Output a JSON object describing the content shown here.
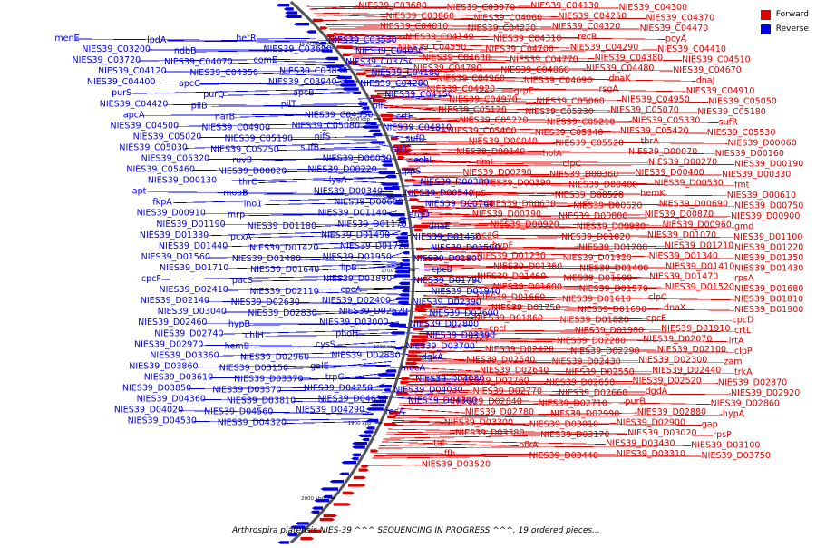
{
  "legend": {
    "items": [
      {
        "label": "Forward",
        "color": "#e00000"
      },
      {
        "label": "Reverse",
        "color": "#0000e0"
      }
    ]
  },
  "colors": {
    "forward": "#e00000",
    "reverse": "#0000e0",
    "backbone": "#555555"
  },
  "ticks": [
    "1500 kbp",
    "1500 kbp",
    "1600 kbp",
    "1700 kbp",
    "1800 kbp",
    "1900 kbp",
    "2000 kbp"
  ],
  "caption": "Arthrospira platensis NIES-39 ^^^ SEQUENCING IN PROGRESS ^^^, 19 ordered pieces...",
  "reverse_labels": [
    "menE",
    "lpdA",
    "hetR",
    "NIES39_C03530",
    "NIES39_C03200",
    "ndbB",
    "NIES39_C03690",
    "NIES39_C04050",
    "NIES39_C03720",
    "NIES39_C04070",
    "comE",
    "NIES39_C03750",
    "NIES39_C04120",
    "NIES39_C04350",
    "NIES39_C03830",
    "NIES39_C04180",
    "NIES39_C04400",
    "apcC",
    "NIES39_C03940",
    "NIES39_C04280",
    "purS",
    "purQ",
    "apcB",
    "NIES39_C04150",
    "NIES39_C04420",
    "pilB",
    "pilT",
    "pilC",
    "apcA",
    "narB",
    "NIES39_C04330",
    "crtH",
    "NIES39_C04500",
    "NIES39_C04900",
    "NIES39_C05080",
    "NIES39_C04810",
    "NIES39_C05020",
    "NIES39_C05190",
    "nifS",
    "sufD",
    "NIES39_C05030",
    "NIES39_C05250",
    "sufB",
    "sufC",
    "NIES39_C05320",
    "ruvB",
    "NIES39_D00030",
    "cobL",
    "NIES39_C05460",
    "NIES39_D00020",
    "NIES39_D00220",
    "uppS",
    "NIES39_D00130",
    "thrC",
    "lysA",
    "NIES39_D00380",
    "apt",
    "moaB",
    "NIES39_D00340",
    "NIES39_D00540",
    "fkpA",
    "ino1",
    "NIES39_D00660",
    "NIES39_D00760",
    "NIES39_D00910",
    "mrp",
    "NIES39_D01140",
    "argD",
    "NIES39_D01190",
    "NIES39_D01180",
    "NIES39_D01170",
    "dnaE",
    "NIES39_D01330",
    "pcxA",
    "NIES39_D01490",
    "NIES39_D01450",
    "NIES39_D01440",
    "NIES39_D01420",
    "NIES39_D01720",
    "NIES39_D01590",
    "NIES39_D01560",
    "NIES39_D01480",
    "NIES39_D01950",
    "NIES39_D01800",
    "NIES39_D01710",
    "NIES39_D01640",
    "lipB",
    "cpcB",
    "cpcF",
    "pacS",
    "NIES39_D01890",
    "NIES39_D01790",
    "NIES39_D02410",
    "NIES39_D02110",
    "cpcA",
    "NIES39_D01940",
    "NIES39_D02140",
    "NIES39_D02630",
    "NIES39_D02400",
    "NIES39_D02390",
    "NIES39_D03040",
    "NIES39_D02830",
    "NIES39_D02620",
    "NIES39_D02600",
    "NIES39_D02460",
    "hypB",
    "NIES39_D03000",
    "NIES39_D02800",
    "NIES39_D02740",
    "chlH",
    "phoH",
    "NIES39_D03390",
    "NIES39_D02970",
    "hemB",
    "cysS",
    "NIES39_D03700",
    "NIES39_D03360",
    "NIES39_D02960",
    "NIES39_D02850",
    "dgkA",
    "NIES39_D03860",
    "NIES39_D03150",
    "galE",
    "moeA",
    "NIES39_D03610",
    "NIES39_D03370",
    "trpG",
    "NIES39_D04080",
    "NIES39_D03850",
    "NIES39_D03570",
    "NIES39_D04250",
    "NIES39_D04030",
    "NIES39_D04360",
    "NIES39_D03810",
    "NIES39_D04630",
    "NIES39_D04300",
    "NIES39_D04020",
    "NIES39_D04560",
    "NIES39_D04290",
    "recA",
    "NIES39_D04530",
    "NIES39_D04320"
  ],
  "forward_labels": [
    "NIES39_C03680",
    "NIES39_C03970",
    "NIES39_C04130",
    "NIES39_C04300",
    "NIES39_C03860",
    "NIES39_C04060",
    "NIES39_C04250",
    "NIES39_C04370",
    "NIES39_C04010",
    "NIES39_C04220",
    "NIES39_C04320",
    "NIES39_C04470",
    "NIES39_C04140",
    "NIES39_C04310",
    "recR",
    "pcyA",
    "NIES39_C04550",
    "NIES39_C04700",
    "NIES39_C04290",
    "NIES39_C04410",
    "NIES39_C04630",
    "NIES39_C04770",
    "NIES39_C04380",
    "NIES39_C04510",
    "NIES39_C04780",
    "NIES39_C04860",
    "NIES39_C04480",
    "NIES39_C04670",
    "NIES39_C04960",
    "NIES39_C04690",
    "dnaK",
    "dnaJ",
    "NIES39_C04920",
    "grpE",
    "rsgA",
    "NIES39_C04910",
    "NIES39_C04970",
    "NIES39_C05060",
    "NIES39_C04950",
    "NIES39_C05050",
    "NIES39_C05120",
    "NIES39_C05230",
    "NIES39_C05070",
    "NIES39_C05180",
    "NIES39_C05220",
    "NIES39_C05210",
    "NIES39_C05330",
    "sufR",
    "NIES39_C05400",
    "NIES39_C05340",
    "NIES39_C05420",
    "NIES39_C05530",
    "NIES39_D00040",
    "NIES39_C05520",
    "thrA",
    "NIES39_D00060",
    "NIES39_D00140",
    "holA",
    "NIES39_D00070",
    "NIES39_D00160",
    "rimI",
    "clpC",
    "NIES39_D00270",
    "NIES39_D00190",
    "NIES39_D00290",
    "NIES39_D00360",
    "NIES39_D00400",
    "NIES39_D00330",
    "NIES39_D00390",
    "NIES39_D00480",
    "NIES39_D00530",
    "fmt",
    "clpS",
    "NIES39_D00520",
    "hemK",
    "NIES39_D00610",
    "NIES39_D00630",
    "NIES39_D00620",
    "NIES39_D00690",
    "NIES39_D00750",
    "NIES39_D00790",
    "NIES39_D00800",
    "NIES39_D00870",
    "NIES39_D00900",
    "NIES39_D00920",
    "NIES39_D00930",
    "NIES39_D00960",
    "gmd",
    "wcaG",
    "NIES39_D01020",
    "NIES39_D01070",
    "NIES39_D01100",
    "hypF",
    "NIES39_D01200",
    "NIES39_D01210",
    "NIES39_D01220",
    "NIES39_D01230",
    "NIES39_D01320",
    "NIES39_D01340",
    "NIES39_D01350",
    "NIES39_D01360",
    "NIES39_D01400",
    "NIES39_D01410",
    "NIES39_D01430",
    "NIES39_D01460",
    "NIES39_D01500",
    "NIES39_D01470",
    "rpsA",
    "NIES39_D01600",
    "NIES39_D01570",
    "NIES39_D01520",
    "NIES39_D01680",
    "NIES39_D01660",
    "NIES39_D01610",
    "clpC",
    "NIES39_D01810",
    "NIES39_D01750",
    "NIES39_D01690",
    "dnaX",
    "NIES39_D01900",
    "NIES39_D01860",
    "NIES39_D01820",
    "cpcE",
    "cpcD",
    "cpcI",
    "NIES39_D01980",
    "NIES39_D01910",
    "crtL",
    "cpcH",
    "NIES39_D02280",
    "NIES39_D02070",
    "lrtA",
    "NIES39_D02420",
    "NIES39_D02290",
    "NIES39_D02100",
    "clpP",
    "NIES39_D02540",
    "NIES39_D02430",
    "NIES39_D02300",
    "zam",
    "NIES39_D02640",
    "NIES39_D02550",
    "NIES39_D02440",
    "trkA",
    "NIES39_D02760",
    "NIES39_D02650",
    "NIES39_D02520",
    "NIES39_D02870",
    "NIES39_D02770",
    "NIES39_D02660",
    "dgdA",
    "NIES39_D02920",
    "NIES39_D02840",
    "NIES39_D02710",
    "purB",
    "NIES39_D02860",
    "NIES39_D02780",
    "NIES39_D02990",
    "NIES39_D02880",
    "hypA",
    "NIES39_D03300",
    "NIES39_D03010",
    "NIES39_D02900",
    "gap",
    "NIES39_D03380",
    "NIES39_D03170",
    "NIES39_D03020",
    "rpsP",
    "tal",
    "pfkA",
    "NIES39_D03430",
    "NIES39_D03100",
    "ffh",
    "NIES39_D03440",
    "NIES39_D03310",
    "NIES39_D03750",
    "NIES39_D03520"
  ]
}
